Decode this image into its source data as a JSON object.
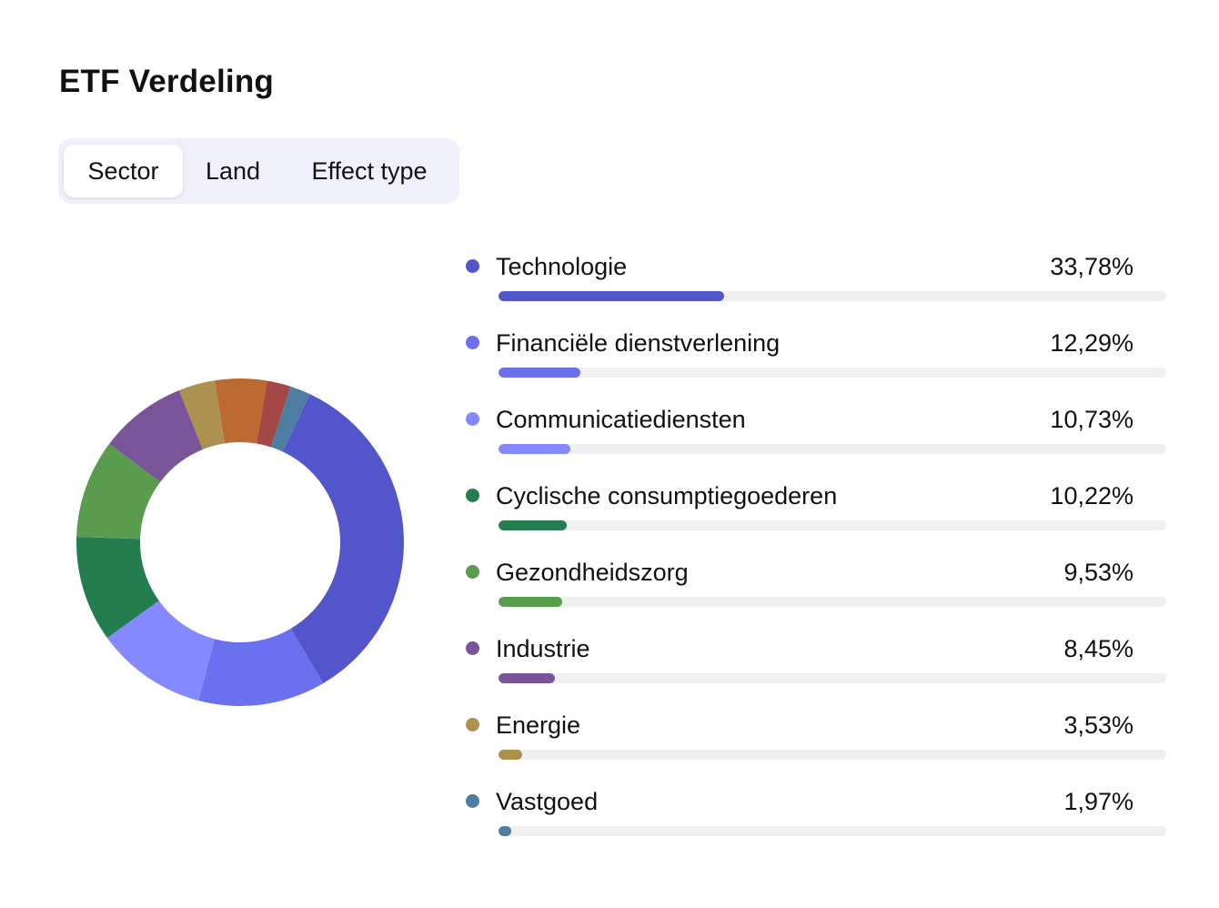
{
  "header": {
    "title": "ETF Verdeling"
  },
  "tabs": [
    {
      "label": "Sector",
      "active": true
    },
    {
      "label": "Land",
      "active": false
    },
    {
      "label": "Effect type",
      "active": false
    }
  ],
  "chart_data": {
    "type": "pie",
    "style": "donut",
    "bar_scale_max": 100,
    "series": [
      {
        "name": "Technologie",
        "value": 33.78,
        "value_label": "33,78%",
        "color": "#5355cb"
      },
      {
        "name": "Financiële dienstverlening",
        "value": 12.29,
        "value_label": "12,29%",
        "color": "#6b70ef"
      },
      {
        "name": "Communicatiediensten",
        "value": 10.73,
        "value_label": "10,73%",
        "color": "#8589ff"
      },
      {
        "name": "Cyclische consumptiegoederen",
        "value": 10.22,
        "value_label": "10,22%",
        "color": "#237d4f"
      },
      {
        "name": "Gezondheidszorg",
        "value": 9.53,
        "value_label": "9,53%",
        "color": "#5a9c4e"
      },
      {
        "name": "Industrie",
        "value": 8.45,
        "value_label": "8,45%",
        "color": "#7a5498"
      },
      {
        "name": "Energie",
        "value": 3.53,
        "value_label": "3,53%",
        "color": "#ad9150"
      },
      {
        "name": "Vastgoed",
        "value": 1.97,
        "value_label": "1,97%",
        "color": "#4d7ea1"
      }
    ],
    "unlisted_slices": [
      {
        "value": 5.0,
        "color": "#bb6a31"
      },
      {
        "value": 2.3,
        "color": "#a34747"
      }
    ]
  }
}
